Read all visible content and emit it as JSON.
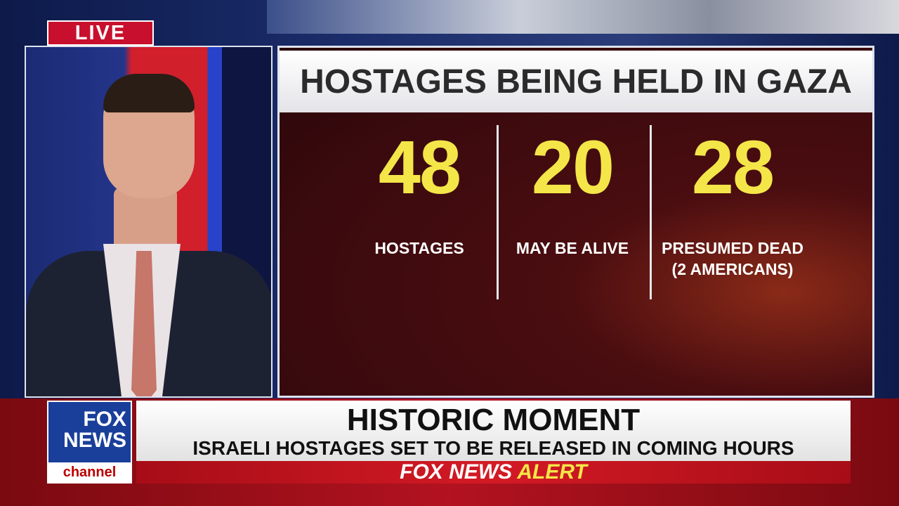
{
  "live_badge": "LIVE",
  "graphic": {
    "title": "HOSTAGES BEING HELD IN GAZA",
    "stats": [
      {
        "value": "48",
        "label": "HOSTAGES",
        "sublabel": ""
      },
      {
        "value": "20",
        "label": "MAY BE ALIVE",
        "sublabel": ""
      },
      {
        "value": "28",
        "label": "PRESUMED DEAD",
        "sublabel": "(2 AMERICANS)"
      }
    ],
    "number_color": "#f4e648"
  },
  "logo": {
    "line1": "FOX",
    "line2": "NEWS",
    "line3": "channel"
  },
  "lower_third": {
    "headline": "HISTORIC MOMENT",
    "subheadline": "ISRAELI HOSTAGES SET TO BE RELEASED IN COMING HOURS",
    "alert_brand": "FOX NEWS",
    "alert_word": "ALERT"
  }
}
